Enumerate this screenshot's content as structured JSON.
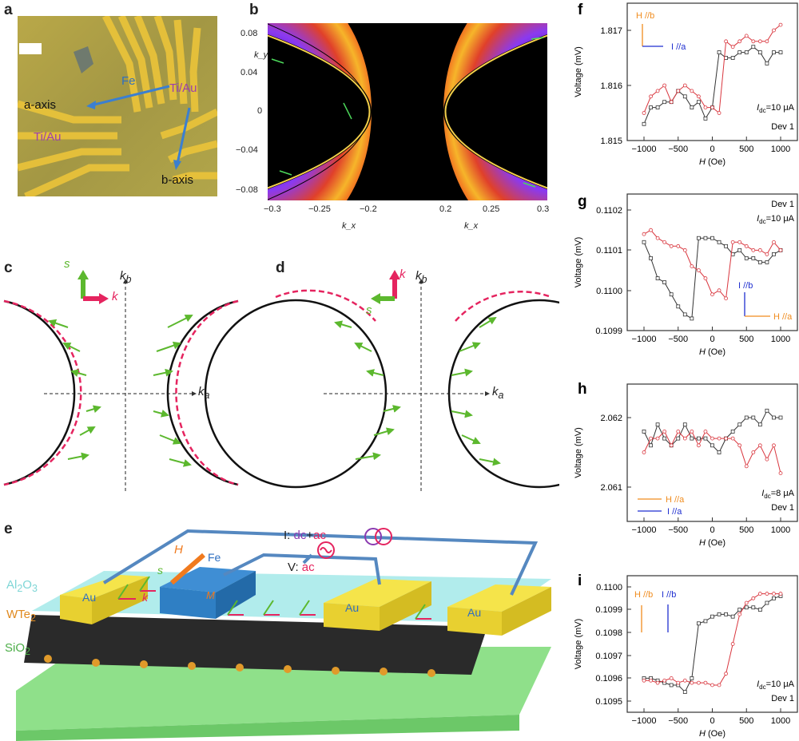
{
  "panels": {
    "a": {
      "label": "a",
      "fe": "Fe",
      "a_axis": "a-axis",
      "b_axis": "b-axis",
      "tiau_left": "Ti/Au",
      "tiau_right": "Ti/Au"
    },
    "b": {
      "label": "b",
      "ylabel": "k_y",
      "xlabel_left": "k_x",
      "xlabel_right": "k_x",
      "yticks": [
        "0.08",
        "0.04",
        "0",
        "−0.04",
        "−0.08"
      ],
      "xticks_left": [
        "−0.3",
        "−0.25",
        "−0.2"
      ],
      "xticks_right": [
        "0.2",
        "0.25",
        "0.3"
      ]
    },
    "c": {
      "label": "c",
      "s": "s",
      "k": "k",
      "kb": "k",
      "kb_sub": "b",
      "ka": "k",
      "ka_sub": "a"
    },
    "d": {
      "label": "d",
      "s": "s",
      "k": "k",
      "kb": "k",
      "kb_sub": "b",
      "ka": "k",
      "ka_sub": "a"
    },
    "e": {
      "label": "e",
      "al2o3": "Al",
      "al2o3_sub1": "2",
      "al2o3_o": "O",
      "al2o3_sub2": "3",
      "wte2": "WTe",
      "wte2_sub": "2",
      "sio2": "SiO",
      "sio2_sub": "2",
      "au": "Au",
      "fe": "Fe",
      "h": "H",
      "m": "M",
      "s": "s",
      "k": "k",
      "i_source_prefix": "I: ",
      "i_source_dc": "dc",
      "i_source_plus": "+",
      "i_source_ac": "ac",
      "v_prefix": "V: ",
      "v_ac": "ac"
    }
  },
  "colors": {
    "red_series": "#d9363e",
    "black_series": "#333333",
    "field_arrow": "#f08c1e",
    "current_arrow": "#1f2fd0",
    "spin": "#5cb82e",
    "momentum": "#e5245f",
    "gold": "#f2dc2a",
    "fe_blue": "#2f7fc4",
    "al2o3": "#9fe3e3",
    "sio2": "#8fe08a"
  },
  "chart_data": [
    {
      "panel": "f",
      "type": "line",
      "xlabel": "H (Oe)",
      "ylabel": "Voltage (mV)",
      "xlim": [
        -1250,
        1250
      ],
      "ylim": [
        1.815,
        1.8175
      ],
      "xticks": [
        "−1000",
        "−500",
        "0",
        "500",
        "1000"
      ],
      "yticks": [
        "1.817",
        "1.816",
        "1.815"
      ],
      "annotations": {
        "field": "H //b",
        "current": "I //a",
        "idc": "=10 μA",
        "idc_sym": "I",
        "idc_sub": "dc",
        "device": "Dev 1"
      },
      "x": [
        -1000,
        -900,
        -800,
        -700,
        -600,
        -500,
        -400,
        -300,
        -200,
        -100,
        0,
        100,
        200,
        300,
        400,
        500,
        600,
        700,
        800,
        900,
        1000
      ],
      "series": [
        {
          "color": "black",
          "values": [
            1.8153,
            1.8156,
            1.8156,
            1.8157,
            1.8157,
            1.8159,
            1.8158,
            1.8156,
            1.8157,
            1.8154,
            1.8156,
            1.8166,
            1.8165,
            1.8165,
            1.8166,
            1.8166,
            1.8167,
            1.8166,
            1.8164,
            1.8166,
            1.8166
          ]
        },
        {
          "color": "red",
          "values": [
            1.8155,
            1.8158,
            1.8159,
            1.816,
            1.8157,
            1.8159,
            1.816,
            1.8159,
            1.8158,
            1.8156,
            1.8156,
            1.8155,
            1.8168,
            1.8167,
            1.8168,
            1.8169,
            1.8168,
            1.8168,
            1.8168,
            1.817,
            1.8171
          ]
        }
      ]
    },
    {
      "panel": "g",
      "type": "line",
      "xlabel": "H (Oe)",
      "ylabel": "Voltage (mV)",
      "xlim": [
        -1250,
        1250
      ],
      "ylim": [
        0.1099,
        0.11024
      ],
      "xticks": [
        "−1000",
        "−500",
        "0",
        "500",
        "1000"
      ],
      "yticks": [
        "0.1102",
        "0.1101",
        "0.1100",
        "0.1099"
      ],
      "annotations": {
        "field": "H //a",
        "current": "I //b",
        "idc": "=10 μA",
        "idc_sym": "I",
        "idc_sub": "dc",
        "device": "Dev 1"
      },
      "x": [
        -1000,
        -900,
        -800,
        -700,
        -600,
        -500,
        -400,
        -300,
        -200,
        -100,
        0,
        100,
        200,
        300,
        400,
        500,
        600,
        700,
        800,
        900,
        1000
      ],
      "series": [
        {
          "color": "black",
          "values": [
            0.11012,
            0.11008,
            0.11003,
            0.11002,
            0.10999,
            0.10996,
            0.10994,
            0.10993,
            0.11013,
            0.11013,
            0.11013,
            0.11012,
            0.11011,
            0.11009,
            0.1101,
            0.11008,
            0.11008,
            0.11007,
            0.11007,
            0.11009,
            0.1101
          ]
        },
        {
          "color": "red",
          "values": [
            0.11014,
            0.11015,
            0.11013,
            0.11012,
            0.11011,
            0.11011,
            0.1101,
            0.11006,
            0.11005,
            0.11003,
            0.10999,
            0.11,
            0.10998,
            0.11012,
            0.11012,
            0.11011,
            0.1101,
            0.1101,
            0.11009,
            0.11012,
            0.1101
          ]
        }
      ]
    },
    {
      "panel": "h",
      "type": "line",
      "xlabel": "H (Oe)",
      "ylabel": "Voltage (mV)",
      "xlim": [
        -1250,
        1250
      ],
      "ylim": [
        2.0605,
        2.0625
      ],
      "xticks": [
        "−1000",
        "−500",
        "0",
        "500",
        "1000"
      ],
      "yticks": [
        "2.062",
        "2.061"
      ],
      "annotations": {
        "field": "H //a",
        "current": "I //a",
        "idc": "=8 μA",
        "idc_sym": "I",
        "idc_sub": "dc",
        "device": "Dev 1"
      },
      "x": [
        -1000,
        -900,
        -800,
        -700,
        -600,
        -500,
        -400,
        -300,
        -200,
        -100,
        0,
        100,
        200,
        300,
        400,
        500,
        600,
        700,
        800,
        900,
        1000
      ],
      "series": [
        {
          "color": "black",
          "values": [
            2.0618,
            2.0616,
            2.0619,
            2.0617,
            2.0616,
            2.0617,
            2.0619,
            2.0617,
            2.0617,
            2.0617,
            2.0616,
            2.0615,
            2.0617,
            2.0618,
            2.0619,
            2.062,
            2.062,
            2.0619,
            2.0621,
            2.062,
            2.062
          ]
        },
        {
          "color": "red",
          "values": [
            2.0615,
            2.0617,
            2.0617,
            2.0618,
            2.0616,
            2.0618,
            2.0617,
            2.0618,
            2.0616,
            2.0618,
            2.0617,
            2.0617,
            2.0617,
            2.0617,
            2.0616,
            2.0613,
            2.0615,
            2.0616,
            2.0614,
            2.0616,
            2.0612
          ]
        }
      ]
    },
    {
      "panel": "i",
      "type": "line",
      "xlabel": "H (Oe)",
      "ylabel": "Voltage (mV)",
      "xlim": [
        -1250,
        1250
      ],
      "ylim": [
        0.10945,
        0.11005
      ],
      "xticks": [
        "−1000",
        "−500",
        "0",
        "500",
        "1000"
      ],
      "yticks": [
        "0.1100",
        "0.1099",
        "0.1098",
        "0.1097",
        "0.1096",
        "0.1095"
      ],
      "annotations": {
        "field": "H //b",
        "current": "I //b",
        "idc": "=10 μA",
        "idc_sym": "I",
        "idc_sub": "dc",
        "device": "Dev 1"
      },
      "x": [
        -1000,
        -900,
        -800,
        -700,
        -600,
        -500,
        -400,
        -300,
        -200,
        -100,
        0,
        100,
        200,
        300,
        400,
        500,
        600,
        700,
        800,
        900,
        1000
      ],
      "series": [
        {
          "color": "black",
          "values": [
            0.1096,
            0.1096,
            0.10959,
            0.10958,
            0.10957,
            0.10957,
            0.10954,
            0.1096,
            0.10984,
            0.10985,
            0.10987,
            0.10988,
            0.10988,
            0.10987,
            0.1099,
            0.10991,
            0.10991,
            0.1099,
            0.10993,
            0.10995,
            0.10996
          ]
        },
        {
          "color": "red",
          "values": [
            0.10959,
            0.10959,
            0.10958,
            0.10959,
            0.1096,
            0.10958,
            0.10959,
            0.10958,
            0.10958,
            0.10958,
            0.10957,
            0.10957,
            0.10962,
            0.10975,
            0.10988,
            0.10993,
            0.10995,
            0.10997,
            0.10997,
            0.10997,
            0.10997
          ]
        }
      ]
    }
  ]
}
